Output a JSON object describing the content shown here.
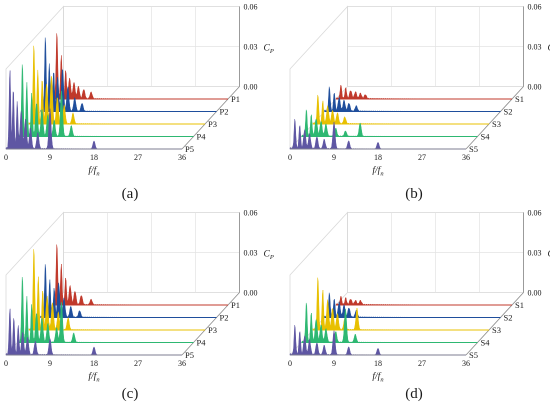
{
  "figure": {
    "panels_order": [
      "a",
      "b",
      "c",
      "d"
    ]
  },
  "chart_data": [
    {
      "id": "a",
      "type": "area",
      "caption": "(a)",
      "xlabel": "f/f",
      "xlabel_sub": "n",
      "zlabel": "C",
      "zlabel_sub": "P",
      "x_ticks": [
        "0",
        "9",
        "18",
        "27",
        "36"
      ],
      "z_ticks": [
        "0.00",
        "0.03",
        "0.06"
      ],
      "xlim": [
        0,
        36
      ],
      "zlim": [
        0,
        0.06
      ],
      "grid": true,
      "series": [
        {
          "name": "P1",
          "color": "#c0392b",
          "peaks": [
            [
              1.0,
              0.05
            ],
            [
              1.9,
              0.032
            ],
            [
              2.8,
              0.021
            ],
            [
              3.6,
              0.015
            ],
            [
              4.5,
              0.012
            ],
            [
              5.4,
              0.009
            ],
            [
              6.5,
              0.007
            ],
            [
              8.0,
              0.005
            ]
          ]
        },
        {
          "name": "P2",
          "color": "#1f4e9c",
          "peaks": [
            [
              1.0,
              0.056
            ],
            [
              1.8,
              0.035
            ],
            [
              2.7,
              0.03
            ],
            [
              3.5,
              0.025
            ],
            [
              4.5,
              0.032
            ],
            [
              5.6,
              0.018
            ],
            [
              7.0,
              0.01
            ],
            [
              8.5,
              0.006
            ]
          ]
        },
        {
          "name": "P3",
          "color": "#e8c000",
          "peaks": [
            [
              1.0,
              0.06
            ],
            [
              1.8,
              0.04
            ],
            [
              2.7,
              0.034
            ],
            [
              3.6,
              0.03
            ],
            [
              4.6,
              0.036
            ],
            [
              5.8,
              0.02
            ],
            [
              7.2,
              0.014
            ],
            [
              9.0,
              0.008
            ]
          ]
        },
        {
          "name": "P4",
          "color": "#2eb872",
          "peaks": [
            [
              1.0,
              0.055
            ],
            [
              1.9,
              0.04
            ],
            [
              2.9,
              0.032
            ],
            [
              3.9,
              0.025
            ],
            [
              5.0,
              0.02
            ],
            [
              6.2,
              0.016
            ],
            [
              7.5,
              0.012
            ],
            [
              9.0,
              0.034
            ],
            [
              11.0,
              0.008
            ]
          ]
        },
        {
          "name": "P5",
          "color": "#5e56a3",
          "peaks": [
            [
              0.8,
              0.06
            ],
            [
              1.5,
              0.045
            ],
            [
              2.3,
              0.035
            ],
            [
              3.1,
              0.028
            ],
            [
              4.0,
              0.022
            ],
            [
              5.0,
              0.016
            ],
            [
              6.5,
              0.012
            ],
            [
              9.0,
              0.03
            ],
            [
              18.0,
              0.006
            ]
          ]
        }
      ]
    },
    {
      "id": "b",
      "type": "area",
      "caption": "(b)",
      "xlabel": "f/f",
      "xlabel_sub": "n",
      "zlabel": "C",
      "zlabel_sub": "P",
      "x_ticks": [
        "0",
        "9",
        "18",
        "27",
        "36"
      ],
      "z_ticks": [
        "0.00",
        "0.03",
        "0.06"
      ],
      "xlim": [
        0,
        36
      ],
      "zlim": [
        0,
        0.06
      ],
      "grid": true,
      "series": [
        {
          "name": "S1",
          "color": "#c0392b",
          "peaks": [
            [
              1.0,
              0.01
            ],
            [
              2.0,
              0.008
            ],
            [
              3.0,
              0.006
            ],
            [
              4.0,
              0.005
            ],
            [
              5.0,
              0.004
            ],
            [
              6.0,
              0.003
            ]
          ]
        },
        {
          "name": "S2",
          "color": "#1f4e9c",
          "peaks": [
            [
              1.0,
              0.018
            ],
            [
              2.0,
              0.014
            ],
            [
              3.0,
              0.01
            ],
            [
              4.0,
              0.008
            ],
            [
              5.0,
              0.006
            ],
            [
              6.5,
              0.004
            ]
          ]
        },
        {
          "name": "S3",
          "color": "#e8c000",
          "peaks": [
            [
              1.0,
              0.022
            ],
            [
              2.0,
              0.017
            ],
            [
              3.0,
              0.013
            ],
            [
              4.0,
              0.01
            ],
            [
              5.0,
              0.008
            ],
            [
              6.5,
              0.005
            ]
          ]
        },
        {
          "name": "S4",
          "color": "#2eb872",
          "peaks": [
            [
              1.0,
              0.02
            ],
            [
              2.0,
              0.016
            ],
            [
              3.0,
              0.013
            ],
            [
              4.0,
              0.011
            ],
            [
              5.0,
              0.009
            ],
            [
              7.0,
              0.006
            ],
            [
              9.0,
              0.004
            ],
            [
              12.0,
              0.01
            ]
          ]
        },
        {
          "name": "S5",
          "color": "#5e56a3",
          "peaks": [
            [
              1.0,
              0.022
            ],
            [
              2.0,
              0.018
            ],
            [
              3.0,
              0.014
            ],
            [
              4.0,
              0.011
            ],
            [
              5.5,
              0.009
            ],
            [
              7.0,
              0.007
            ],
            [
              9.0,
              0.02
            ],
            [
              12.0,
              0.006
            ],
            [
              18.0,
              0.005
            ]
          ]
        }
      ]
    },
    {
      "id": "c",
      "type": "area",
      "caption": "(c)",
      "xlabel": "f/f",
      "xlabel_sub": "n",
      "zlabel": "C",
      "zlabel_sub": "P",
      "x_ticks": [
        "0",
        "9",
        "18",
        "27",
        "36"
      ],
      "z_ticks": [
        "0.00",
        "0.03",
        "0.06"
      ],
      "xlim": [
        0,
        36
      ],
      "zlim": [
        0,
        0.06
      ],
      "grid": true,
      "series": [
        {
          "name": "P1",
          "color": "#c0392b",
          "peaks": [
            [
              1.0,
              0.046
            ],
            [
              1.9,
              0.03
            ],
            [
              2.8,
              0.02
            ],
            [
              3.7,
              0.014
            ],
            [
              4.7,
              0.01
            ],
            [
              6.0,
              0.007
            ],
            [
              8.0,
              0.004
            ]
          ]
        },
        {
          "name": "P2",
          "color": "#1f4e9c",
          "peaks": [
            [
              1.0,
              0.04
            ],
            [
              1.9,
              0.028
            ],
            [
              2.8,
              0.022
            ],
            [
              3.7,
              0.026
            ],
            [
              4.8,
              0.014
            ],
            [
              6.2,
              0.008
            ],
            [
              8.0,
              0.005
            ]
          ]
        },
        {
          "name": "P3",
          "color": "#e8c000",
          "peaks": [
            [
              1.0,
              0.062
            ],
            [
              1.9,
              0.04
            ],
            [
              2.8,
              0.03
            ],
            [
              3.7,
              0.025
            ],
            [
              4.8,
              0.02
            ],
            [
              6.0,
              0.013
            ],
            [
              8.0,
              0.009
            ]
          ]
        },
        {
          "name": "P4",
          "color": "#2eb872",
          "peaks": [
            [
              1.0,
              0.05
            ],
            [
              1.9,
              0.034
            ],
            [
              2.9,
              0.028
            ],
            [
              3.9,
              0.022
            ],
            [
              5.0,
              0.018
            ],
            [
              6.2,
              0.014
            ],
            [
              8.0,
              0.011
            ],
            [
              9.0,
              0.03
            ],
            [
              11.5,
              0.007
            ]
          ]
        },
        {
          "name": "P5",
          "color": "#5e56a3",
          "peaks": [
            [
              0.8,
              0.035
            ],
            [
              1.6,
              0.028
            ],
            [
              2.5,
              0.022
            ],
            [
              3.4,
              0.017
            ],
            [
              4.4,
              0.013
            ],
            [
              6.0,
              0.01
            ],
            [
              9.0,
              0.012
            ],
            [
              18.0,
              0.006
            ]
          ]
        }
      ]
    },
    {
      "id": "d",
      "type": "area",
      "caption": "(d)",
      "xlabel": "f/f",
      "xlabel_sub": "n",
      "zlabel": "C",
      "zlabel_sub": "P",
      "x_ticks": [
        "0",
        "9",
        "18",
        "27",
        "36"
      ],
      "z_ticks": [
        "0.00",
        "0.03",
        "0.06"
      ],
      "xlim": [
        0,
        36
      ],
      "zlim": [
        0,
        0.06
      ],
      "grid": true,
      "series": [
        {
          "name": "S1",
          "color": "#c0392b",
          "peaks": [
            [
              1.0,
              0.006
            ],
            [
              2.0,
              0.005
            ],
            [
              3.0,
              0.004
            ],
            [
              4.0,
              0.003
            ],
            [
              5.0,
              0.003
            ]
          ]
        },
        {
          "name": "S2",
          "color": "#1f4e9c",
          "peaks": [
            [
              1.0,
              0.018
            ],
            [
              2.0,
              0.014
            ],
            [
              3.0,
              0.011
            ],
            [
              4.0,
              0.009
            ],
            [
              5.0,
              0.007
            ],
            [
              6.5,
              0.005
            ]
          ]
        },
        {
          "name": "S3",
          "color": "#e8c000",
          "peaks": [
            [
              1.0,
              0.04
            ],
            [
              2.0,
              0.03
            ],
            [
              3.0,
              0.022
            ],
            [
              4.0,
              0.016
            ],
            [
              5.0,
              0.012
            ],
            [
              6.5,
              0.008
            ],
            [
              9.0,
              0.016
            ]
          ]
        },
        {
          "name": "S4",
          "color": "#2eb872",
          "peaks": [
            [
              1.0,
              0.03
            ],
            [
              2.0,
              0.022
            ],
            [
              3.0,
              0.017
            ],
            [
              4.0,
              0.013
            ],
            [
              5.0,
              0.01
            ],
            [
              7.0,
              0.008
            ],
            [
              9.0,
              0.025
            ],
            [
              11.0,
              0.006
            ]
          ]
        },
        {
          "name": "S5",
          "color": "#5e56a3",
          "peaks": [
            [
              1.0,
              0.022
            ],
            [
              2.0,
              0.018
            ],
            [
              3.0,
              0.014
            ],
            [
              4.0,
              0.011
            ],
            [
              5.5,
              0.009
            ],
            [
              7.0,
              0.007
            ],
            [
              9.0,
              0.018
            ],
            [
              12.0,
              0.006
            ],
            [
              18.0,
              0.005
            ]
          ]
        }
      ]
    }
  ]
}
